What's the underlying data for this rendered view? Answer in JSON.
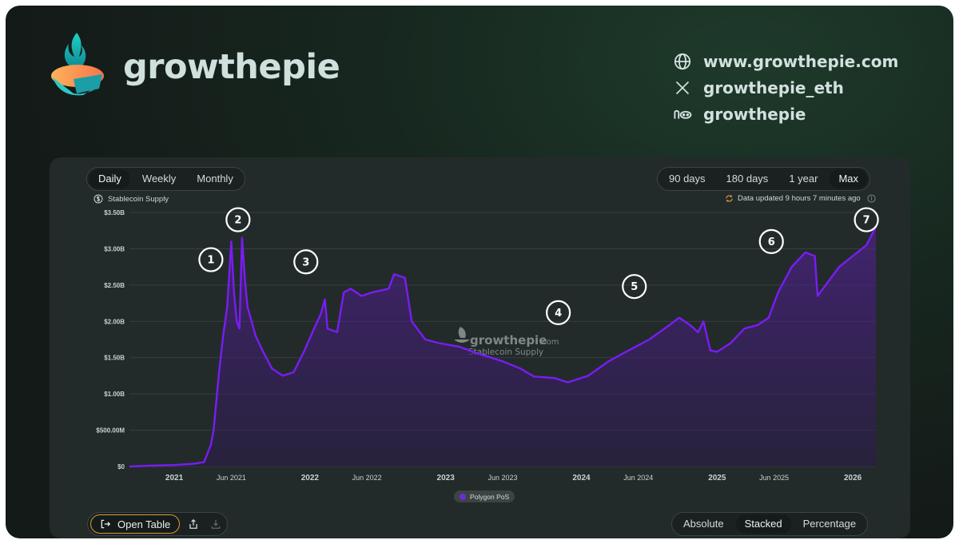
{
  "brand": {
    "name": "growthepie"
  },
  "social": [
    {
      "icon": "globe-icon",
      "text": "www.growthepie.com"
    },
    {
      "icon": "x-logo-icon",
      "text": "growthepie_eth"
    },
    {
      "icon": "lens-icon",
      "text": "growthepie"
    }
  ],
  "controls": {
    "frequency": [
      "Daily",
      "Weekly",
      "Monthly"
    ],
    "frequency_active": "Daily",
    "ranges": [
      "90 days",
      "180 days",
      "1 year",
      "Max"
    ],
    "range_active": "Max",
    "modes": [
      "Absolute",
      "Stacked",
      "Percentage"
    ],
    "mode_active": "Stacked",
    "open_table_label": "Open Table"
  },
  "metric_label": "Stablecoin Supply",
  "updated_text": "Data updated 9 hours 7 minutes ago",
  "watermark": {
    "brand": "growthepie",
    "suffix": ".com",
    "subtitle": "Stablecoin Supply"
  },
  "colors": {
    "series": "#7a1cf5",
    "accent": "#d79a3b"
  },
  "chart_data": {
    "type": "area",
    "title": "Stablecoin Supply",
    "ylabel": "",
    "xlabel": "",
    "ylim": [
      0,
      3.5
    ],
    "y_unit": "B USD",
    "yticks": [
      "$0",
      "$500.00M",
      "$1.00B",
      "$1.50B",
      "$2.00B",
      "$2.50B",
      "$3.00B",
      "$3.50B"
    ],
    "xticks": [
      {
        "label": "2021",
        "t": 2021.0,
        "kind": "year"
      },
      {
        "label": "Jun 2021",
        "t": 2021.42,
        "kind": "half"
      },
      {
        "label": "2022",
        "t": 2022.0,
        "kind": "year"
      },
      {
        "label": "Jun 2022",
        "t": 2022.42,
        "kind": "half"
      },
      {
        "label": "2023",
        "t": 2023.0,
        "kind": "year"
      },
      {
        "label": "Jun 2023",
        "t": 2023.42,
        "kind": "half"
      },
      {
        "label": "2024",
        "t": 2024.0,
        "kind": "year"
      },
      {
        "label": "Jun 2024",
        "t": 2024.42,
        "kind": "half"
      },
      {
        "label": "2025",
        "t": 2025.0,
        "kind": "year"
      },
      {
        "label": "Jun 2025",
        "t": 2025.42,
        "kind": "half"
      },
      {
        "label": "2026",
        "t": 2026.0,
        "kind": "year"
      }
    ],
    "xlim": [
      2020.67,
      2026.17
    ],
    "series": [
      {
        "name": "Polygon PoS",
        "points": [
          [
            2020.67,
            0.0
          ],
          [
            2020.8,
            0.01
          ],
          [
            2021.0,
            0.02
          ],
          [
            2021.15,
            0.04
          ],
          [
            2021.22,
            0.06
          ],
          [
            2021.27,
            0.3
          ],
          [
            2021.29,
            0.5
          ],
          [
            2021.33,
            1.3
          ],
          [
            2021.36,
            1.8
          ],
          [
            2021.39,
            2.2
          ],
          [
            2021.42,
            3.1
          ],
          [
            2021.44,
            2.4
          ],
          [
            2021.46,
            2.0
          ],
          [
            2021.48,
            1.9
          ],
          [
            2021.5,
            3.15
          ],
          [
            2021.52,
            2.6
          ],
          [
            2021.54,
            2.2
          ],
          [
            2021.57,
            2.0
          ],
          [
            2021.6,
            1.8
          ],
          [
            2021.65,
            1.6
          ],
          [
            2021.72,
            1.35
          ],
          [
            2021.8,
            1.25
          ],
          [
            2021.88,
            1.3
          ],
          [
            2021.96,
            1.6
          ],
          [
            2022.03,
            1.9
          ],
          [
            2022.08,
            2.1
          ],
          [
            2022.11,
            2.3
          ],
          [
            2022.13,
            1.9
          ],
          [
            2022.2,
            1.85
          ],
          [
            2022.25,
            2.4
          ],
          [
            2022.3,
            2.45
          ],
          [
            2022.38,
            2.35
          ],
          [
            2022.46,
            2.4
          ],
          [
            2022.58,
            2.45
          ],
          [
            2022.62,
            2.65
          ],
          [
            2022.7,
            2.6
          ],
          [
            2022.75,
            2.0
          ],
          [
            2022.85,
            1.75
          ],
          [
            2022.95,
            1.7
          ],
          [
            2023.1,
            1.65
          ],
          [
            2023.25,
            1.55
          ],
          [
            2023.42,
            1.45
          ],
          [
            2023.55,
            1.35
          ],
          [
            2023.65,
            1.24
          ],
          [
            2023.8,
            1.22
          ],
          [
            2023.9,
            1.16
          ],
          [
            2024.05,
            1.25
          ],
          [
            2024.2,
            1.45
          ],
          [
            2024.35,
            1.6
          ],
          [
            2024.5,
            1.75
          ],
          [
            2024.65,
            1.95
          ],
          [
            2024.72,
            2.05
          ],
          [
            2024.8,
            1.95
          ],
          [
            2024.86,
            1.85
          ],
          [
            2024.9,
            2.0
          ],
          [
            2024.95,
            1.6
          ],
          [
            2025.0,
            1.58
          ],
          [
            2025.1,
            1.7
          ],
          [
            2025.2,
            1.9
          ],
          [
            2025.3,
            1.95
          ],
          [
            2025.38,
            2.05
          ],
          [
            2025.45,
            2.4
          ],
          [
            2025.55,
            2.75
          ],
          [
            2025.65,
            2.95
          ],
          [
            2025.72,
            2.9
          ],
          [
            2025.74,
            2.35
          ],
          [
            2025.8,
            2.5
          ],
          [
            2025.9,
            2.75
          ],
          [
            2026.0,
            2.9
          ],
          [
            2026.1,
            3.05
          ],
          [
            2026.17,
            3.3
          ]
        ]
      }
    ],
    "annotations": [
      {
        "label": "1",
        "t": 2021.27,
        "v": 2.85
      },
      {
        "label": "2",
        "t": 2021.47,
        "v": 3.4
      },
      {
        "label": "3",
        "t": 2021.97,
        "v": 2.82
      },
      {
        "label": "4",
        "t": 2023.83,
        "v": 2.12
      },
      {
        "label": "5",
        "t": 2024.39,
        "v": 2.48
      },
      {
        "label": "6",
        "t": 2025.4,
        "v": 3.1
      },
      {
        "label": "7",
        "t": 2026.1,
        "v": 3.4
      }
    ],
    "legend": [
      "Polygon PoS"
    ],
    "grid": true
  }
}
